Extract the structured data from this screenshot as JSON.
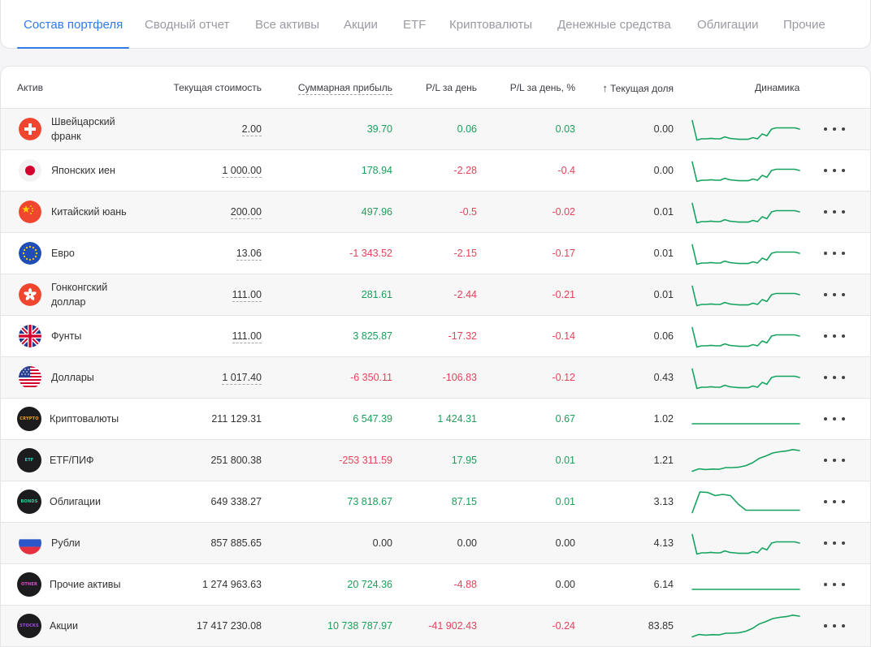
{
  "tabs": [
    {
      "label": "Состав портфеля",
      "active": true
    },
    {
      "label": "Сводный отчет",
      "active": false
    },
    {
      "label": "Все активы",
      "active": false
    },
    {
      "label": "Акции",
      "active": false
    },
    {
      "label": "ETF",
      "active": false
    },
    {
      "label": "Криптовалюты",
      "active": false
    },
    {
      "label": "Денежные средства",
      "active": false
    },
    {
      "label": "Облигации",
      "active": false
    },
    {
      "label": "Прочие",
      "active": false
    }
  ],
  "columns": {
    "asset": "Актив",
    "current_value": "Текущая стоимость",
    "total_profit": "Суммарная прибыль",
    "pl_day": "P/L за день",
    "pl_day_pct": "P/L за день, %",
    "current_share": "Текущая доля",
    "sort_arrow": "↑",
    "dynamics": "Динамика"
  },
  "colors": {
    "accent": "#2f7ae5",
    "positive": "#1aa05b",
    "negative": "#e5425b",
    "sparkline": "#16a35f"
  },
  "spark_shapes": {
    "currency": [
      0.15,
      0.95,
      0.9,
      0.9,
      0.88,
      0.9,
      0.9,
      0.82,
      0.88,
      0.9,
      0.92,
      0.92,
      0.92,
      0.85,
      0.9,
      0.7,
      0.78,
      0.5,
      0.45,
      0.45,
      0.45,
      0.45,
      0.45,
      0.5
    ],
    "flat": [
      0.7,
      0.7,
      0.7,
      0.7,
      0.7,
      0.7
    ],
    "rising": [
      0.95,
      0.85,
      0.88,
      0.86,
      0.87,
      0.8,
      0.8,
      0.78,
      0.72,
      0.6,
      0.42,
      0.32,
      0.2,
      0.15,
      0.12,
      0.06,
      0.1
    ],
    "bonds": [
      0.95,
      0.1,
      0.12,
      0.25,
      0.2,
      0.25,
      0.6,
      0.85,
      0.85,
      0.85,
      0.85,
      0.85,
      0.85,
      0.85,
      0.85
    ]
  },
  "rows": [
    {
      "icon": "swiss-flag-icon",
      "icon_type": "flag",
      "name": "Швейцарский франк",
      "value": "2.00",
      "value_dashed": true,
      "profit": "39.70",
      "profit_sign": "pos",
      "pl_day": "0.06",
      "pl_day_sign": "pos",
      "pl_pct": "0.03",
      "pl_pct_sign": "pos",
      "share": "0.00",
      "spark": "currency",
      "name_two_line": true
    },
    {
      "icon": "japan-flag-icon",
      "icon_type": "flag",
      "name": "Японских иен",
      "value": "1 000.00",
      "value_dashed": true,
      "profit": "178.94",
      "profit_sign": "pos",
      "pl_day": "-2.28",
      "pl_day_sign": "neg",
      "pl_pct": "-0.4",
      "pl_pct_sign": "neg",
      "share": "0.00",
      "spark": "currency"
    },
    {
      "icon": "china-flag-icon",
      "icon_type": "flag",
      "name": "Китайский юань",
      "value": "200.00",
      "value_dashed": true,
      "profit": "497.96",
      "profit_sign": "pos",
      "pl_day": "-0.5",
      "pl_day_sign": "neg",
      "pl_pct": "-0.02",
      "pl_pct_sign": "neg",
      "share": "0.01",
      "spark": "currency"
    },
    {
      "icon": "eu-flag-icon",
      "icon_type": "flag",
      "name": "Евро",
      "value": "13.06",
      "value_dashed": true,
      "profit": "-1 343.52",
      "profit_sign": "neg",
      "pl_day": "-2.15",
      "pl_day_sign": "neg",
      "pl_pct": "-0.17",
      "pl_pct_sign": "neg",
      "share": "0.01",
      "spark": "currency"
    },
    {
      "icon": "hongkong-flag-icon",
      "icon_type": "flag",
      "name": "Гонконгский доллар",
      "value": "111.00",
      "value_dashed": true,
      "profit": "281.61",
      "profit_sign": "pos",
      "pl_day": "-2.44",
      "pl_day_sign": "neg",
      "pl_pct": "-0.21",
      "pl_pct_sign": "neg",
      "share": "0.01",
      "spark": "currency",
      "name_two_line": true
    },
    {
      "icon": "uk-flag-icon",
      "icon_type": "flag",
      "name": "Фунты",
      "value": "111.00",
      "value_dashed": true,
      "profit": "3 825.87",
      "profit_sign": "pos",
      "pl_day": "-17.32",
      "pl_day_sign": "neg",
      "pl_pct": "-0.14",
      "pl_pct_sign": "neg",
      "share": "0.06",
      "spark": "currency"
    },
    {
      "icon": "usa-flag-icon",
      "icon_type": "flag",
      "name": "Доллары",
      "value": "1 017.40",
      "value_dashed": true,
      "profit": "-6 350.11",
      "profit_sign": "neg",
      "pl_day": "-106.83",
      "pl_day_sign": "neg",
      "pl_pct": "-0.12",
      "pl_pct_sign": "neg",
      "share": "0.43",
      "spark": "currency"
    },
    {
      "icon": "crypto-icon",
      "icon_type": "dark",
      "icon_label": "CRYPTO",
      "icon_color": "#f0a020",
      "name": "Криптовалюты",
      "value": "211 129.31",
      "value_dashed": false,
      "profit": "6 547.39",
      "profit_sign": "pos",
      "pl_day": "1 424.31",
      "pl_day_sign": "pos",
      "pl_pct": "0.67",
      "pl_pct_sign": "pos",
      "share": "1.02",
      "spark": "flat"
    },
    {
      "icon": "etf-icon",
      "icon_type": "dark",
      "icon_label": "ETF",
      "icon_color": "#2fd6c8",
      "name": "ETF/ПИФ",
      "value": "251 800.38",
      "value_dashed": false,
      "profit": "-253 311.59",
      "profit_sign": "neg",
      "pl_day": "17.95",
      "pl_day_sign": "pos",
      "pl_pct": "0.01",
      "pl_pct_sign": "pos",
      "share": "1.21",
      "spark": "rising"
    },
    {
      "icon": "bonds-icon",
      "icon_type": "dark",
      "icon_label": "BONDS",
      "icon_color": "#2fd6a0",
      "name": "Облигации",
      "value": "649 338.27",
      "value_dashed": false,
      "profit": "73 818.67",
      "profit_sign": "pos",
      "pl_day": "87.15",
      "pl_day_sign": "pos",
      "pl_pct": "0.01",
      "pl_pct_sign": "pos",
      "share": "3.13",
      "spark": "bonds"
    },
    {
      "icon": "russia-flag-icon",
      "icon_type": "flag",
      "name": "Рубли",
      "value": "857 885.65",
      "value_dashed": false,
      "profit": "0.00",
      "profit_sign": "neutral",
      "pl_day": "0.00",
      "pl_day_sign": "neutral",
      "pl_pct": "0.00",
      "pl_pct_sign": "neutral",
      "share": "4.13",
      "spark": "currency"
    },
    {
      "icon": "other-icon",
      "icon_type": "dark",
      "icon_label": "OTHER",
      "icon_color": "#e04fd0",
      "name": "Прочие активы",
      "value": "1 274 963.63",
      "value_dashed": false,
      "profit": "20 724.36",
      "profit_sign": "pos",
      "pl_day": "-4.88",
      "pl_day_sign": "neg",
      "pl_pct": "0.00",
      "pl_pct_sign": "neutral",
      "share": "6.14",
      "spark": "flat"
    },
    {
      "icon": "stocks-icon",
      "icon_type": "dark",
      "icon_label": "STOCKS",
      "icon_color": "#a050e0",
      "name": "Акции",
      "value": "17 417 230.08",
      "value_dashed": false,
      "profit": "10 738 787.97",
      "profit_sign": "pos",
      "pl_day": "-41 902.43",
      "pl_day_sign": "neg",
      "pl_pct": "-0.24",
      "pl_pct_sign": "neg",
      "share": "83.85",
      "spark": "rising"
    }
  ]
}
